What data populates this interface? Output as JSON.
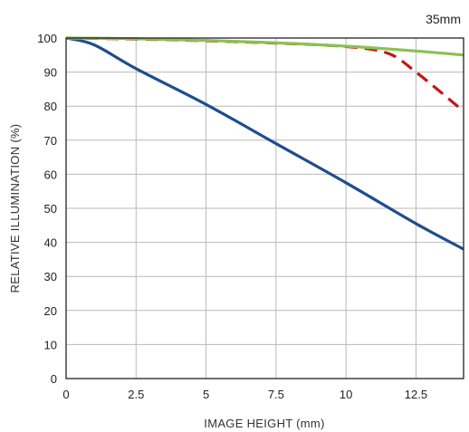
{
  "chart_data": {
    "type": "line",
    "title": "35mm",
    "xlabel": "IMAGE HEIGHT (mm)",
    "ylabel": "RELATIVE ILLUMINATION (%)",
    "xlim": [
      0,
      14.2
    ],
    "ylim": [
      0,
      100
    ],
    "x_ticks": [
      0,
      2.5,
      5,
      7.5,
      10,
      12.5
    ],
    "x_tick_labels": [
      "0",
      "2.5",
      "5",
      "7.5",
      "10",
      "12.5"
    ],
    "y_ticks": [
      0,
      10,
      20,
      30,
      40,
      50,
      60,
      70,
      80,
      90,
      100
    ],
    "y_tick_labels": [
      "0",
      "10",
      "20",
      "30",
      "40",
      "50",
      "60",
      "70",
      "80",
      "90",
      "100"
    ],
    "grid": true,
    "legend": "none",
    "series": [
      {
        "color": "#1f4e8c",
        "style": "solid",
        "x": [
          0,
          1,
          2.5,
          5,
          7.5,
          10,
          12.5,
          14.2
        ],
        "y": [
          100,
          98,
          91,
          80.5,
          69,
          57.5,
          45.5,
          38
        ]
      },
      {
        "color": "#c4161c",
        "style": "dashed",
        "x": [
          0,
          2.5,
          5,
          7.5,
          10,
          11.5,
          12.5,
          14.2
        ],
        "y": [
          100,
          99.7,
          99.2,
          98.5,
          97.5,
          95.5,
          90,
          78.5
        ]
      },
      {
        "color": "#8cc152",
        "style": "solid",
        "x": [
          0,
          2.5,
          5,
          7.5,
          10,
          12.5,
          14.2
        ],
        "y": [
          100,
          99.8,
          99.3,
          98.6,
          97.6,
          96.2,
          95
        ]
      }
    ]
  }
}
